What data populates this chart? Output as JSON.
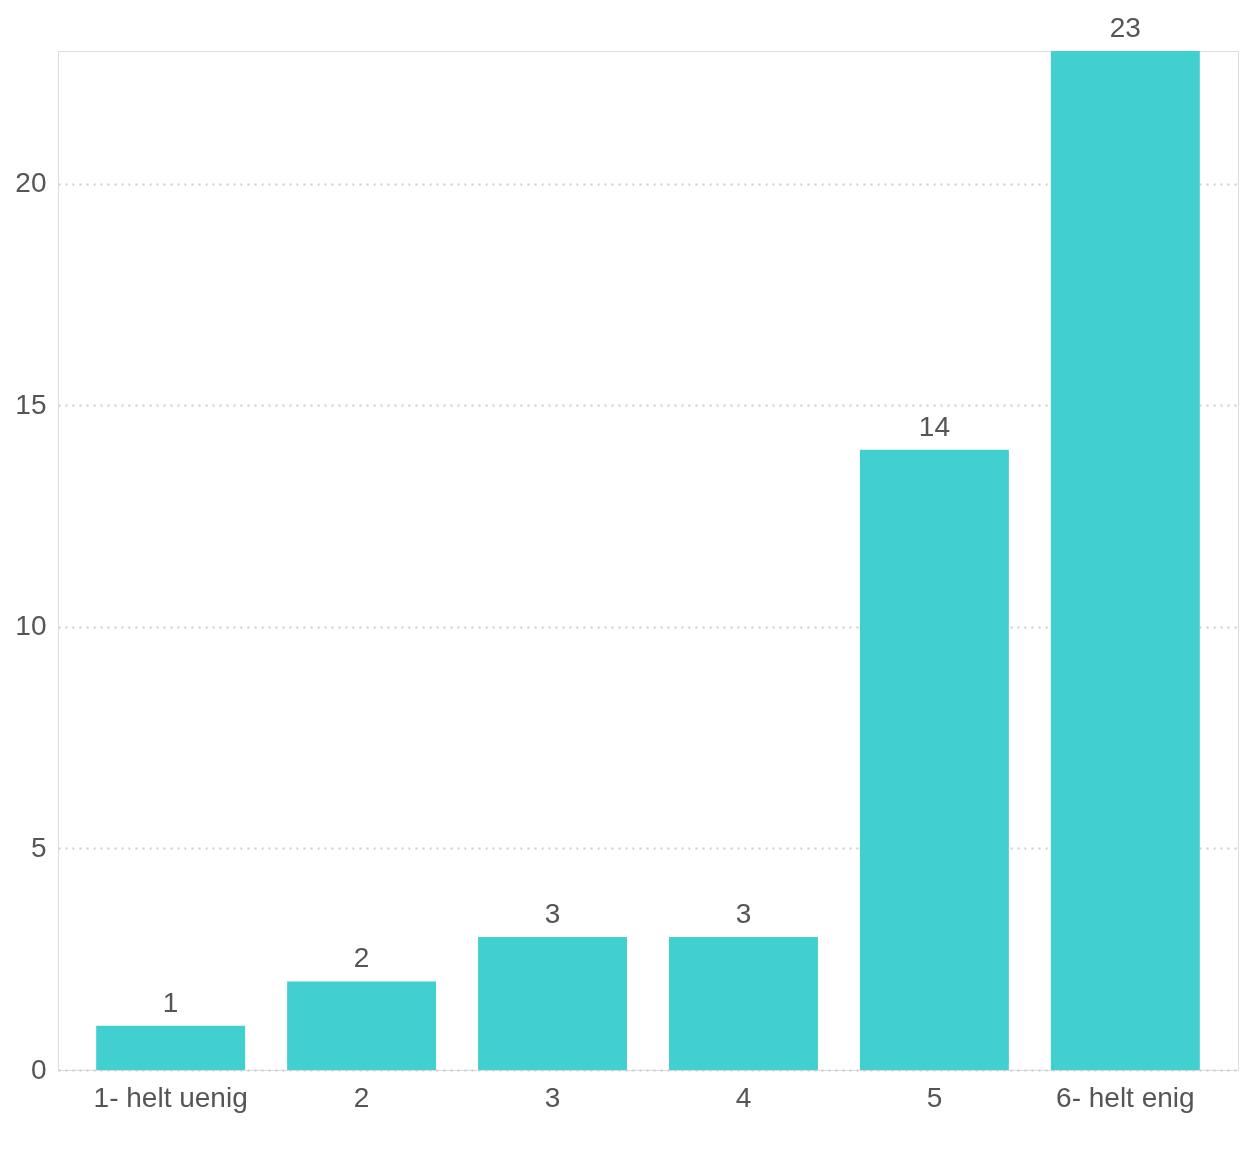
{
  "chart_data": {
    "type": "bar",
    "categories": [
      "1- helt uenig",
      "2",
      "3",
      "4",
      "5",
      "6- helt enig"
    ],
    "values": [
      1,
      2,
      3,
      3,
      14,
      23
    ],
    "color": "#41cfcf",
    "ylim": [
      0,
      23
    ],
    "yticks": [
      0,
      5,
      10,
      15,
      20
    ],
    "grid": "y",
    "data_labels": true
  }
}
